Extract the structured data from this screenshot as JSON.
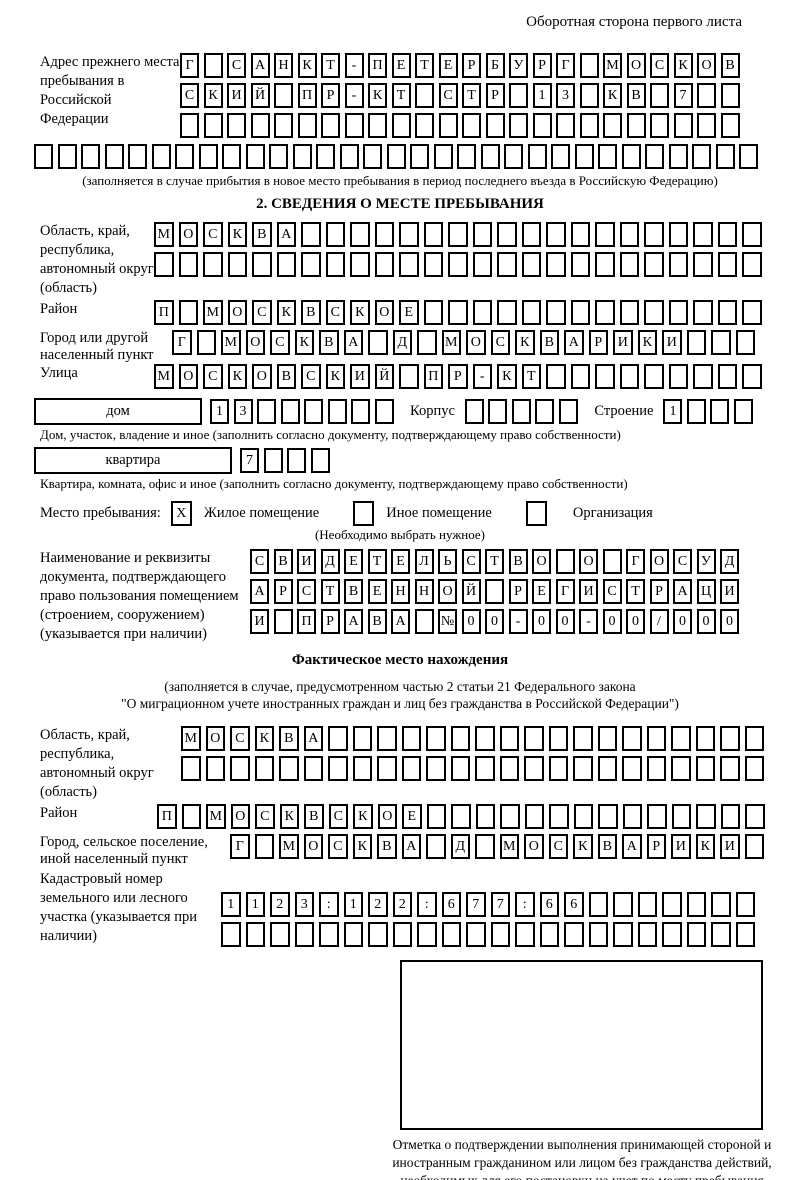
{
  "page": {
    "header_note": "Оборотная сторона первого листа",
    "ink_color": "#000000"
  },
  "prev_address": {
    "label": "Адрес прежнего места пребывания в Российской Федерации",
    "rows": [
      {
        "count": 24,
        "text": "Г САНКТ-ПЕТЕРБУРГ МОСКОВ"
      },
      {
        "count": 24,
        "text": "СКИЙ ПР-КТ СТР 13 КВ 7"
      },
      {
        "count": 24,
        "text": ""
      },
      {
        "count": 31,
        "text": ""
      }
    ],
    "caption": "(заполняется в случае прибытия в новое место пребывания в период последнего въезда в Российскую Федерацию)"
  },
  "section2": {
    "title": "2. СВЕДЕНИЯ О МЕСТЕ ПРЕБЫВАНИЯ",
    "region": {
      "label": "Область, край, республика, автономный округ (область)",
      "rows": [
        {
          "count": 25,
          "text": "МОСКВА"
        },
        {
          "count": 25,
          "text": ""
        }
      ]
    },
    "district": {
      "label": "Район",
      "rows": [
        {
          "count": 25,
          "text": "П МОСКВСКОЕ"
        }
      ]
    },
    "city": {
      "label": "Город или другой населенный пункт",
      "rows": [
        {
          "count": 24,
          "text": "Г МОСКВА Д МОСКВАРИКИ"
        }
      ]
    },
    "street": {
      "label": "Улица",
      "rows": [
        {
          "count": 25,
          "text": "МОСКОВСКИЙ ПР-КТ"
        }
      ]
    },
    "house": {
      "box_label": "дом",
      "cells": {
        "count": 8,
        "text": "13"
      },
      "korpus_label": "Корпус",
      "korpus_cells": {
        "count": 5,
        "text": ""
      },
      "stroenie_label": "Строение",
      "stroenie_cells": {
        "count": 4,
        "text": "1"
      },
      "caption": "Дом, участок, владение и иное (заполнить согласно документу, подтверждающему право собственности)"
    },
    "apartment": {
      "box_label": "квартира",
      "cells": {
        "count": 4,
        "text": "7"
      },
      "caption": "Квартира, комната, офис и иное (заполнить согласно документу, подтверждающему право собственности)"
    },
    "stay_type": {
      "label": "Место пребывания:",
      "options": [
        {
          "mark": "X",
          "label": "Жилое помещение"
        },
        {
          "mark": "",
          "label": "Иное помещение"
        },
        {
          "mark": "",
          "label": "Организация"
        }
      ],
      "note": "(Необходимо выбрать нужное)"
    },
    "document": {
      "label": "Наименование и реквизиты документа, подтверждающего право пользования помещением (строением, сооружением) (указывается при наличии)",
      "rows": [
        {
          "count": 21,
          "text": "СВИДЕТЕЛЬСТВО О ГОСУД"
        },
        {
          "count": 21,
          "text": "АРСТВЕННОЙ РЕГИСТРАЦИ"
        },
        {
          "count": 21,
          "text": "И ПРАВА №00-00-00/000"
        }
      ]
    }
  },
  "actual_location": {
    "title": "Фактическое место нахождения",
    "note_line1": "(заполняется в случае, предусмотренном частью 2 статьи 21 Федерального закона",
    "note_line2": "\"О миграционном учете иностранных граждан и лиц без гражданства в Российской Федерации\")",
    "region": {
      "label": "Область, край, республика, автономный округ (область)",
      "rows": [
        {
          "count": 24,
          "text": "МОСКВА"
        },
        {
          "count": 24,
          "text": ""
        }
      ]
    },
    "district": {
      "label": "Район",
      "rows": [
        {
          "count": 25,
          "text": "П МОСКВСКОЕ"
        }
      ]
    },
    "city": {
      "label": "Город, сельское поселение, иной населенный пункт",
      "rows": [
        {
          "count": 22,
          "text": "Г МОСКВА Д МОСКВАРИКИ"
        }
      ]
    },
    "cadastral": {
      "label": "Кадастровый номер земельного или лесного участка (указывается при наличии)",
      "rows": [
        {
          "count": 22,
          "text": "1123:122:677:66"
        },
        {
          "count": 22,
          "text": ""
        }
      ]
    }
  },
  "stamp": {
    "caption": "Отметка о подтверждении выполнения принимающей стороной и иностранным гражданином или лицом без гражданства действий, необходимых для его постановки на учет по месту пребывания"
  }
}
